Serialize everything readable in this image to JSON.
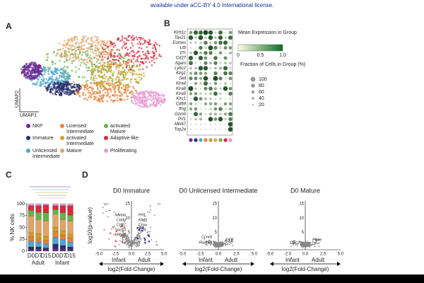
{
  "header": {
    "text": "available under aCC-BY 4.0 International license."
  },
  "panelA": {
    "label": "A",
    "y_axis": "UMAP2",
    "x_axis": "UMAP1",
    "legend": [
      {
        "name": "NKP",
        "color": "#6a2c91"
      },
      {
        "name": "Immature",
        "color": "#2b2f6b"
      },
      {
        "name": "Unlicensed Intermediate",
        "color": "#4fa6d6"
      },
      {
        "name": "Licensed Intermediate",
        "color": "#e8803a"
      },
      {
        "name": "activated Intermediate",
        "color": "#c9a227"
      },
      {
        "name": "Mature",
        "color": "#e0a468"
      },
      {
        "name": "activated Mature",
        "color": "#6ab04c"
      },
      {
        "name": "Adaptive-like",
        "color": "#d62b3a"
      },
      {
        "name": "Proliferating",
        "color": "#e79ad0"
      }
    ]
  },
  "panelB": {
    "label": "B",
    "genes": [
      "Klrb1c",
      "Tbx21",
      "Eomes",
      "Ltb",
      "Il7r",
      "Cd27",
      "Itgam",
      "Ly6c2",
      "Klrg1",
      "Sell",
      "Klra4",
      "Klra8",
      "Klra9",
      "Klrc1",
      "Cd69",
      "Ifng",
      "Gzmb",
      "Prf1",
      "Mki67",
      "Top2a"
    ],
    "color_title": "Mean Expression in Group",
    "color_ticks": [
      "0",
      "0.5",
      "1.0"
    ],
    "size_title": "Fraction of Cells in Group (%)",
    "size_ticks": [
      "100",
      "80",
      "60",
      "40",
      "20"
    ]
  },
  "panelC": {
    "label": "C",
    "y_axis": "% NK cells",
    "yticks": [
      0,
      25,
      50,
      75,
      100
    ],
    "bars": [
      "D0",
      "D7",
      "D15",
      "D0",
      "D7",
      "D15"
    ],
    "groups": [
      "Adult",
      "Infant"
    ],
    "segments": [
      [
        3,
        4,
        3,
        5,
        4,
        3
      ],
      [
        6,
        5,
        4,
        10,
        8,
        6
      ],
      [
        12,
        10,
        8,
        14,
        12,
        10
      ],
      [
        10,
        8,
        7,
        12,
        10,
        9
      ],
      [
        8,
        10,
        9,
        9,
        8,
        8
      ],
      [
        35,
        30,
        33,
        28,
        25,
        27
      ],
      [
        12,
        15,
        17,
        10,
        14,
        13
      ],
      [
        10,
        14,
        16,
        8,
        15,
        20
      ],
      [
        4,
        4,
        3,
        4,
        4,
        4
      ]
    ]
  },
  "panelD": {
    "label": "D",
    "y_axis": "log10(p-value)",
    "x_axis": "log2(Fold-Change)",
    "left": "Infant",
    "right": "Adult",
    "xticks": [
      "-5.0",
      "-2.5",
      "0.0",
      "2.5",
      "5.0"
    ],
    "yticks": [
      "0",
      "5",
      "10",
      "15"
    ],
    "plots": [
      {
        "title": "D0 Immature",
        "genes": [
          "Nfkbia",
          "Cd3g",
          "Cd27",
          "Socs3",
          "Rgs2",
          "Prf1",
          "Klrg1",
          "Ctsw",
          "Ccl5"
        ]
      },
      {
        "title": "D0 Unlicensed Intermediate",
        "genes": [
          "Ranbp1",
          "Eif3f",
          "Ccnd1"
        ]
      },
      {
        "title": "D0 Mature",
        "genes": [
          "Chic2",
          "Ptpre"
        ]
      }
    ]
  }
}
